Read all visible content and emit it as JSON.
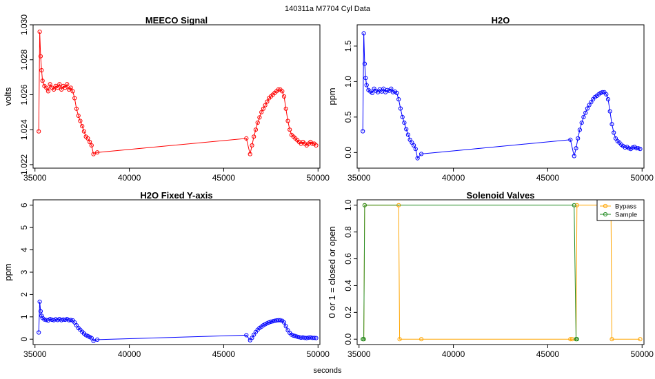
{
  "figure": {
    "suptitle": "140311a    M7704    Cyl Data",
    "xlabel": "seconds"
  },
  "chart_data": [
    {
      "id": "meeco",
      "type": "scatter",
      "title": "MEECO Signal",
      "ylabel": "volts",
      "xlim": [
        34900,
        50100
      ],
      "ylim": [
        1.0218,
        1.03
      ],
      "xticks": [
        35000,
        40000,
        45000,
        50000
      ],
      "xtick_labels": [
        "35000",
        "40000",
        "45000",
        "50000"
      ],
      "yticks": [
        1.022,
        1.024,
        1.026,
        1.028,
        1.03
      ],
      "ytick_labels": [
        "1.022",
        "1.024",
        "1.026",
        "1.028",
        "1.030"
      ],
      "color": "#ff0000",
      "series": [
        {
          "name": "MEECO",
          "x": [
            35200,
            35250,
            35300,
            35350,
            35400,
            35500,
            35600,
            35700,
            35800,
            35900,
            36000,
            36100,
            36200,
            36300,
            36400,
            36500,
            36600,
            36700,
            36800,
            36900,
            37000,
            37100,
            37200,
            37300,
            37400,
            37500,
            37600,
            37700,
            37800,
            37900,
            38000,
            38100,
            38300,
            46200,
            46400,
            46500,
            46600,
            46700,
            46800,
            46900,
            47000,
            47100,
            47200,
            47300,
            47400,
            47500,
            47600,
            47700,
            47800,
            47900,
            48000,
            48100,
            48200,
            48300,
            48400,
            48500,
            48600,
            48700,
            48800,
            48900,
            49000,
            49100,
            49200,
            49300,
            49400,
            49500,
            49600,
            49700,
            49800,
            49900
          ],
          "y": [
            1.0239,
            1.0296,
            1.0282,
            1.0274,
            1.0268,
            1.0265,
            1.0264,
            1.0262,
            1.0266,
            1.0264,
            1.0263,
            1.0265,
            1.0264,
            1.0266,
            1.0263,
            1.0265,
            1.0264,
            1.0266,
            1.0263,
            1.0264,
            1.0262,
            1.0258,
            1.0252,
            1.0248,
            1.0245,
            1.0242,
            1.0239,
            1.0236,
            1.0235,
            1.0233,
            1.0231,
            1.0226,
            1.0227,
            1.0235,
            1.0226,
            1.0231,
            1.0236,
            1.024,
            1.0244,
            1.0247,
            1.025,
            1.0252,
            1.0254,
            1.0256,
            1.0258,
            1.0259,
            1.026,
            1.0261,
            1.0262,
            1.0263,
            1.0263,
            1.0262,
            1.0259,
            1.0252,
            1.0245,
            1.024,
            1.0237,
            1.0236,
            1.0235,
            1.0234,
            1.0233,
            1.0232,
            1.0233,
            1.0232,
            1.0231,
            1.0232,
            1.0233,
            1.0232,
            1.0232,
            1.0231
          ]
        }
      ]
    },
    {
      "id": "h2o",
      "type": "scatter",
      "title": "H2O",
      "ylabel": "ppm",
      "xlim": [
        34900,
        50100
      ],
      "ylim": [
        -0.22,
        1.8
      ],
      "xticks": [
        35000,
        40000,
        45000,
        50000
      ],
      "xtick_labels": [
        "35000",
        "40000",
        "45000",
        "50000"
      ],
      "yticks": [
        0.0,
        0.5,
        1.0,
        1.5
      ],
      "ytick_labels": [
        "0.0",
        "0.5",
        "1.0",
        "1.5"
      ],
      "color": "#0000ff",
      "series": [
        {
          "name": "H2O",
          "x": [
            35200,
            35250,
            35300,
            35350,
            35400,
            35500,
            35600,
            35700,
            35800,
            35900,
            36000,
            36100,
            36200,
            36300,
            36400,
            36500,
            36600,
            36700,
            36800,
            36900,
            37000,
            37100,
            37200,
            37300,
            37400,
            37500,
            37600,
            37700,
            37800,
            37900,
            38000,
            38100,
            38300,
            46200,
            46400,
            46500,
            46600,
            46700,
            46800,
            46900,
            47000,
            47100,
            47200,
            47300,
            47400,
            47500,
            47600,
            47700,
            47800,
            47900,
            48000,
            48100,
            48200,
            48300,
            48400,
            48500,
            48600,
            48700,
            48800,
            48900,
            49000,
            49100,
            49200,
            49300,
            49400,
            49500,
            49600,
            49700,
            49800,
            49900
          ],
          "y": [
            0.3,
            1.68,
            1.25,
            1.05,
            0.95,
            0.88,
            0.86,
            0.84,
            0.9,
            0.87,
            0.85,
            0.89,
            0.86,
            0.9,
            0.85,
            0.88,
            0.87,
            0.9,
            0.85,
            0.86,
            0.84,
            0.75,
            0.62,
            0.5,
            0.42,
            0.33,
            0.25,
            0.18,
            0.14,
            0.1,
            0.05,
            -0.08,
            -0.02,
            0.18,
            -0.05,
            0.06,
            0.2,
            0.32,
            0.42,
            0.5,
            0.56,
            0.62,
            0.67,
            0.71,
            0.75,
            0.78,
            0.8,
            0.82,
            0.84,
            0.85,
            0.85,
            0.82,
            0.75,
            0.58,
            0.4,
            0.28,
            0.2,
            0.16,
            0.14,
            0.11,
            0.09,
            0.07,
            0.08,
            0.06,
            0.05,
            0.07,
            0.08,
            0.06,
            0.06,
            0.05
          ]
        }
      ]
    },
    {
      "id": "h2o_fixed",
      "type": "scatter",
      "title": "H2O Fixed Y-axis",
      "ylabel": "ppm",
      "xlim": [
        34900,
        50100
      ],
      "ylim": [
        -0.24,
        6.24
      ],
      "xticks": [
        35000,
        40000,
        45000,
        50000
      ],
      "xtick_labels": [
        "35000",
        "40000",
        "45000",
        "50000"
      ],
      "yticks": [
        0,
        1,
        2,
        3,
        4,
        5,
        6
      ],
      "ytick_labels": [
        "0",
        "1",
        "2",
        "3",
        "4",
        "5",
        "6"
      ],
      "color": "#0000ff",
      "series": [
        {
          "name": "H2O",
          "x": [
            35200,
            35250,
            35300,
            35350,
            35400,
            35500,
            35600,
            35700,
            35800,
            35900,
            36000,
            36100,
            36200,
            36300,
            36400,
            36500,
            36600,
            36700,
            36800,
            36900,
            37000,
            37100,
            37200,
            37300,
            37400,
            37500,
            37600,
            37700,
            37800,
            37900,
            38000,
            38100,
            38300,
            46200,
            46400,
            46500,
            46600,
            46700,
            46800,
            46900,
            47000,
            47100,
            47200,
            47300,
            47400,
            47500,
            47600,
            47700,
            47800,
            47900,
            48000,
            48100,
            48200,
            48300,
            48400,
            48500,
            48600,
            48700,
            48800,
            48900,
            49000,
            49100,
            49200,
            49300,
            49400,
            49500,
            49600,
            49700,
            49800,
            49900
          ],
          "y": [
            0.3,
            1.68,
            1.25,
            1.05,
            0.95,
            0.88,
            0.86,
            0.84,
            0.9,
            0.87,
            0.85,
            0.89,
            0.86,
            0.9,
            0.85,
            0.88,
            0.87,
            0.9,
            0.85,
            0.86,
            0.84,
            0.75,
            0.62,
            0.5,
            0.42,
            0.33,
            0.25,
            0.18,
            0.14,
            0.1,
            0.05,
            -0.08,
            -0.02,
            0.18,
            -0.05,
            0.06,
            0.2,
            0.32,
            0.42,
            0.5,
            0.56,
            0.62,
            0.67,
            0.71,
            0.75,
            0.78,
            0.8,
            0.82,
            0.84,
            0.85,
            0.85,
            0.82,
            0.75,
            0.58,
            0.4,
            0.28,
            0.2,
            0.16,
            0.14,
            0.11,
            0.09,
            0.07,
            0.08,
            0.06,
            0.05,
            0.07,
            0.08,
            0.06,
            0.06,
            0.05
          ]
        }
      ]
    },
    {
      "id": "valves",
      "type": "line",
      "title": "Solenoid Valves",
      "ylabel": "0 or 1 = closed or open",
      "xlim": [
        34900,
        50100
      ],
      "ylim": [
        -0.04,
        1.04
      ],
      "xticks": [
        35000,
        40000,
        45000,
        50000
      ],
      "xtick_labels": [
        "35000",
        "40000",
        "45000",
        "50000"
      ],
      "yticks": [
        0.0,
        0.2,
        0.4,
        0.6,
        0.8,
        1.0
      ],
      "ytick_labels": [
        "0.0",
        "0.2",
        "0.4",
        "0.6",
        "0.8",
        "1.0"
      ],
      "legend": {
        "position": "top-right",
        "entries": [
          "Bypass",
          "Sample"
        ]
      },
      "series": [
        {
          "name": "Bypass",
          "color": "#ffa500",
          "x": [
            35250,
            35300,
            37100,
            37150,
            38300,
            46200,
            46300,
            46500,
            46550,
            48350,
            48400,
            49900
          ],
          "y": [
            0,
            1,
            1,
            0,
            0,
            0,
            0,
            0,
            1,
            1,
            0,
            0
          ]
        },
        {
          "name": "Sample",
          "color": "#228b22",
          "x": [
            35200,
            35250,
            35300,
            46400,
            46500,
            46550
          ],
          "y": [
            0,
            0,
            1,
            1,
            0,
            0
          ]
        }
      ]
    }
  ]
}
